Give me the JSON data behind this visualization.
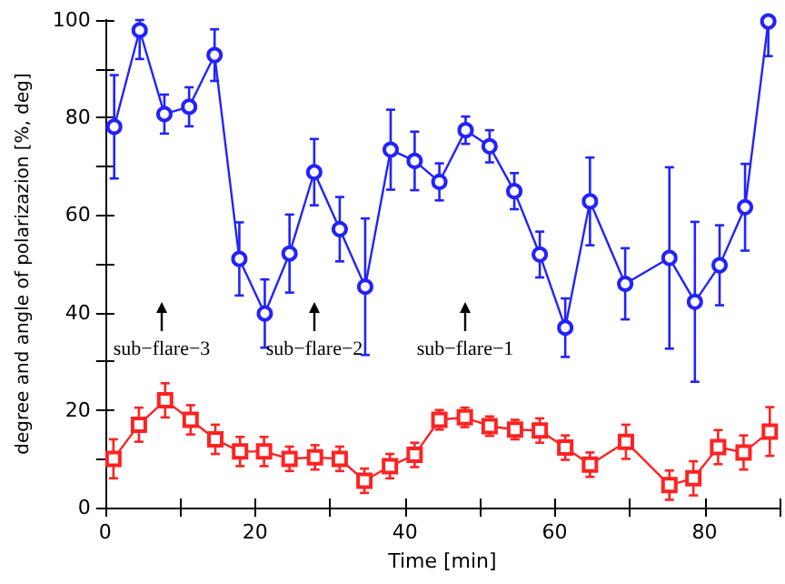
{
  "chart_data": {
    "type": "line",
    "xlabel": "Time [min]",
    "ylabel": "degree and angle of polarizazion [%, deg]",
    "xlim": [
      0,
      90
    ],
    "xticks": [
      0,
      {
        "value": 10,
        "label": null
      },
      20,
      {
        "value": 30,
        "label": null
      },
      40,
      {
        "value": 50,
        "label": null
      },
      60,
      {
        "value": 70,
        "label": null
      },
      80,
      {
        "value": 90,
        "label": null
      }
    ],
    "ylim": [
      0,
      100
    ],
    "yticks": [
      0,
      {
        "value": 10,
        "label": null
      },
      20,
      {
        "value": 30,
        "label": null
      },
      40,
      {
        "value": 50,
        "label": null
      },
      60,
      {
        "value": 70,
        "label": null
      },
      80,
      {
        "value": 90,
        "label": null
      },
      100
    ],
    "grid": false,
    "line_style": "solid",
    "annotations": [
      "sub−flare−3",
      "sub−flare−2",
      "sub−flare−1"
    ],
    "series": [
      {
        "color": "#2222ff",
        "marker": "circle",
        "x": [
          1.2,
          4.6,
          7.9,
          11.2,
          14.6,
          17.9,
          21.3,
          24.6,
          27.9,
          31.3,
          34.7,
          38.1,
          41.3,
          44.6,
          48.1,
          51.3,
          54.6,
          58,
          61.4,
          64.7,
          69.4,
          75.3,
          78.7,
          82,
          85.4,
          88.5
        ],
        "values": [
          78.1,
          97.9,
          80.7,
          82.2,
          92.8,
          51,
          39.8,
          52.1,
          68.8,
          57.1,
          45.3,
          73.4,
          71.1,
          66.8,
          77.4,
          74.1,
          64.9,
          51.9,
          36.9,
          62.8,
          45.9,
          51.2,
          42.2,
          49.7,
          61.6,
          99.7
        ],
        "errors": [
          10.6,
          [
            92,
            100
          ],
          4,
          4,
          5.3,
          7.5,
          7,
          8,
          6.8,
          6.6,
          14,
          8.2,
          6,
          3.8,
          2.8,
          3.3,
          3.7,
          4.7,
          6,
          9,
          7.3,
          18.6,
          16.4,
          8.2,
          8.9,
          [
            92.6,
            100
          ]
        ]
      },
      {
        "color": "#ff2222",
        "marker": "square",
        "x": [
          1.1,
          4.5,
          8,
          11.4,
          14.7,
          18,
          21.2,
          24.6,
          28,
          31.3,
          34.6,
          38,
          41.3,
          44.6,
          48,
          51.3,
          54.7,
          58,
          61.4,
          64.7,
          69.5,
          75.3,
          78.5,
          81.8,
          85.2,
          88.7
        ],
        "values": [
          10,
          17,
          22,
          18,
          14,
          11.5,
          11.5,
          10,
          10.3,
          10,
          5.5,
          8.5,
          10.8,
          18,
          18.5,
          16.7,
          16,
          15.8,
          12.3,
          8.8,
          13.5,
          4.6,
          6,
          12.4,
          11.3,
          15.6
        ],
        "errors": [
          4,
          3.5,
          3.5,
          3,
          3,
          3,
          3,
          2.5,
          2.5,
          2.5,
          2.5,
          2.5,
          2.5,
          2,
          2,
          2,
          2,
          2.5,
          2.5,
          2.5,
          3.5,
          3,
          3.5,
          3.5,
          3.5,
          5
        ]
      }
    ]
  }
}
